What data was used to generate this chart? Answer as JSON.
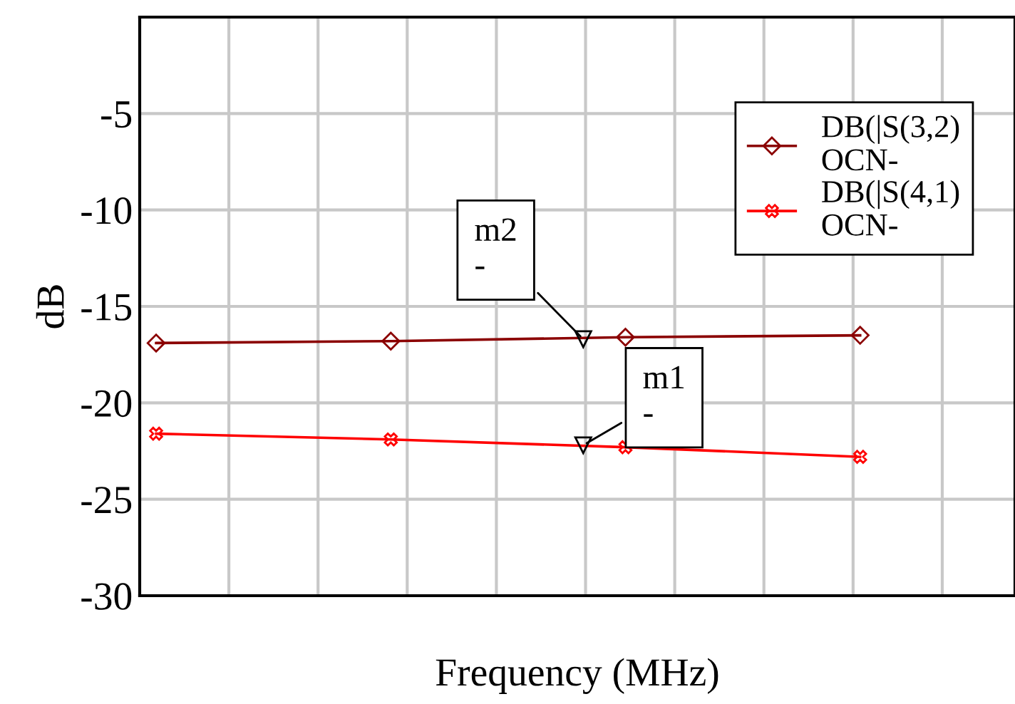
{
  "chart_data": {
    "type": "line",
    "xlabel": "Frequency (MHz)",
    "ylabel": "dB",
    "categories": [
      null,
      null,
      null,
      null
    ],
    "ylim": [
      -30,
      0
    ],
    "yticks": [
      -30,
      -25,
      -20,
      -15,
      -10,
      -5,
      {
        "value": 0,
        "label": null
      }
    ],
    "grid": true,
    "legend": "top right",
    "series": [
      {
        "name": "DB(|S(3,2)\nOCN-",
        "color": "#8b0000",
        "marker": "diamond",
        "values": [
          -16.9,
          -16.8,
          -16.6,
          -16.5
        ]
      },
      {
        "name": "DB(|S(4,1)\nOCN-",
        "color": "#ff0000",
        "marker": "cross",
        "values": [
          -21.6,
          -21.9,
          -22.3,
          -22.8
        ]
      }
    ],
    "annotations": [
      {
        "text": "m2\n-",
        "y": -16.7
      },
      {
        "text": "m1\n-",
        "y": -22.2
      }
    ]
  }
}
